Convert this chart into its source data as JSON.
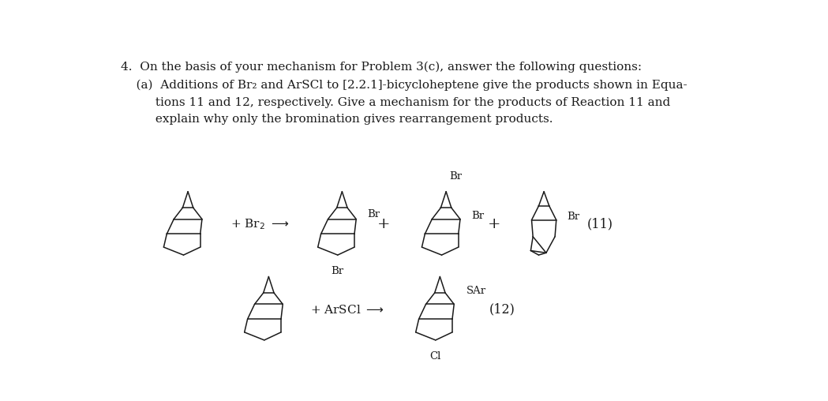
{
  "title_text": "4.  On the basis of your mechanism for Problem 3(c), answer the following questions:",
  "sub1_text": "    (a)  Additions of Br₂ and ArSCl to [2.2.1]-bicycloheptene give the products shown in Equa-",
  "sub2_text": "         tions 11 and 12, respectively. Give a mechanism for the products of Reaction 11 and",
  "sub3_text": "         explain why only the bromination gives rearrangement products.",
  "eq11_label": "(11)",
  "eq12_label": "(12)",
  "bg_color": "#ffffff",
  "text_color": "#1a1a1a",
  "line_color": "#1a1a1a",
  "lw": 1.1,
  "fontsize_text": 11.0,
  "fontsize_mol_label": 9.5,
  "fontsize_eq": 11.5
}
